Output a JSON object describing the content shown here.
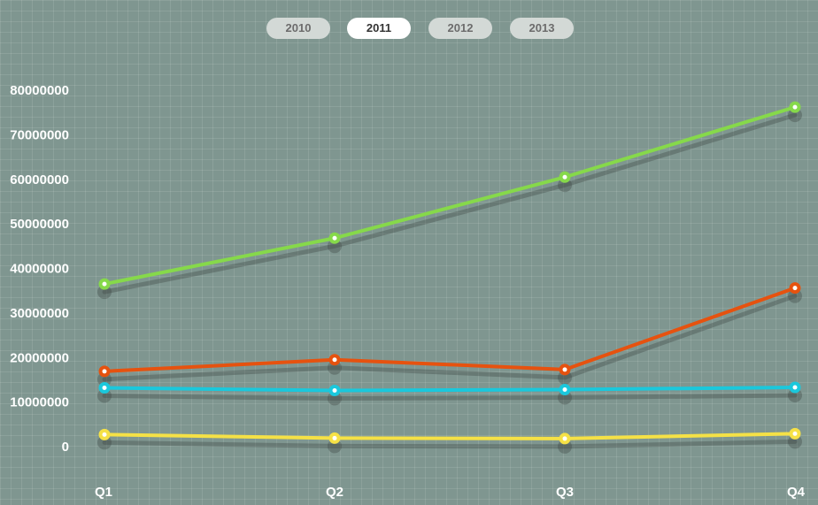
{
  "year_tabs": [
    {
      "label": "2010",
      "active": false
    },
    {
      "label": "2011",
      "active": true
    },
    {
      "label": "2012",
      "active": false
    },
    {
      "label": "2013",
      "active": false
    }
  ],
  "chart_data": {
    "type": "line",
    "categories": [
      "Q1",
      "Q2",
      "Q3",
      "Q4"
    ],
    "ylim": [
      0,
      80000000
    ],
    "yticks": [
      0,
      10000000,
      20000000,
      30000000,
      40000000,
      50000000,
      60000000,
      70000000,
      80000000
    ],
    "grid": true,
    "legend": "none",
    "series": [
      {
        "color": "#86d94a",
        "values": [
          36500000,
          46800000,
          60500000,
          76200000
        ]
      },
      {
        "color": "#e6520f",
        "values": [
          16900000,
          19500000,
          17300000,
          35600000
        ]
      },
      {
        "color": "#1ac8dc",
        "values": [
          13200000,
          12600000,
          12800000,
          13300000
        ]
      },
      {
        "color": "#f5e146",
        "values": [
          2700000,
          1900000,
          1800000,
          2900000
        ]
      }
    ]
  }
}
